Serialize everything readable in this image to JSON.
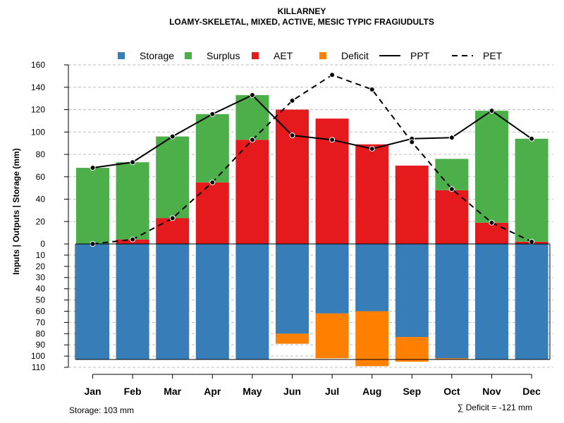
{
  "chart_data": {
    "type": "bar",
    "title": "KILLARNEY",
    "subtitle": "LOAMY-SKELETAL, MIXED, ACTIVE, MESIC TYPIC FRAGIUDULTS",
    "ylabel": "Inputs | Outputs | Storage    (mm)",
    "categories": [
      "Jan",
      "Feb",
      "Mar",
      "Apr",
      "May",
      "Jun",
      "Jul",
      "Aug",
      "Sep",
      "Oct",
      "Nov",
      "Dec"
    ],
    "upper_ylim": [
      0,
      160
    ],
    "upper_ticks": [
      "0",
      "20",
      "40",
      "60",
      "80",
      "100",
      "120",
      "140",
      "160"
    ],
    "lower_ylim": [
      0,
      110
    ],
    "lower_ticks": [
      "0",
      "10",
      "20",
      "30",
      "40",
      "50",
      "60",
      "70",
      "80",
      "90",
      "100",
      "110"
    ],
    "legend": [
      {
        "name": "Storage",
        "kind": "box",
        "color": "#377EB8"
      },
      {
        "name": "Surplus",
        "kind": "box",
        "color": "#4DAF4A"
      },
      {
        "name": "AET",
        "kind": "box",
        "color": "#E41A1C"
      },
      {
        "name": "Deficit",
        "kind": "box",
        "color": "#FF7F00"
      },
      {
        "name": "PPT",
        "kind": "solid-line",
        "color": "#000000"
      },
      {
        "name": "PET",
        "kind": "dashed-line",
        "color": "#000000"
      }
    ],
    "series": [
      {
        "name": "AET",
        "values": [
          0,
          4,
          23,
          55,
          93,
          120,
          112,
          89,
          70,
          48,
          19,
          2
        ]
      },
      {
        "name": "Surplus",
        "values": [
          68,
          69,
          73,
          61,
          40,
          0,
          0,
          0,
          0,
          28,
          100,
          92
        ]
      },
      {
        "name": "PPT",
        "values": [
          68,
          73,
          96,
          116,
          133,
          97,
          93,
          85,
          94,
          95,
          119,
          94
        ]
      },
      {
        "name": "PET",
        "values": [
          0,
          4,
          23,
          55,
          93,
          128,
          151,
          138,
          91,
          49,
          19,
          2
        ]
      },
      {
        "name": "Storage",
        "values": [
          103,
          103,
          103,
          103,
          103,
          80,
          62,
          60,
          83,
          102,
          103,
          103
        ]
      },
      {
        "name": "Deficit",
        "values": [
          0,
          0,
          0,
          0,
          0,
          9,
          40,
          49,
          22,
          1,
          0,
          0
        ]
      }
    ],
    "storage_capacity": 103,
    "footer_left": "Storage: 103 mm",
    "footer_right": "∑ Deficit = -121 mm"
  }
}
